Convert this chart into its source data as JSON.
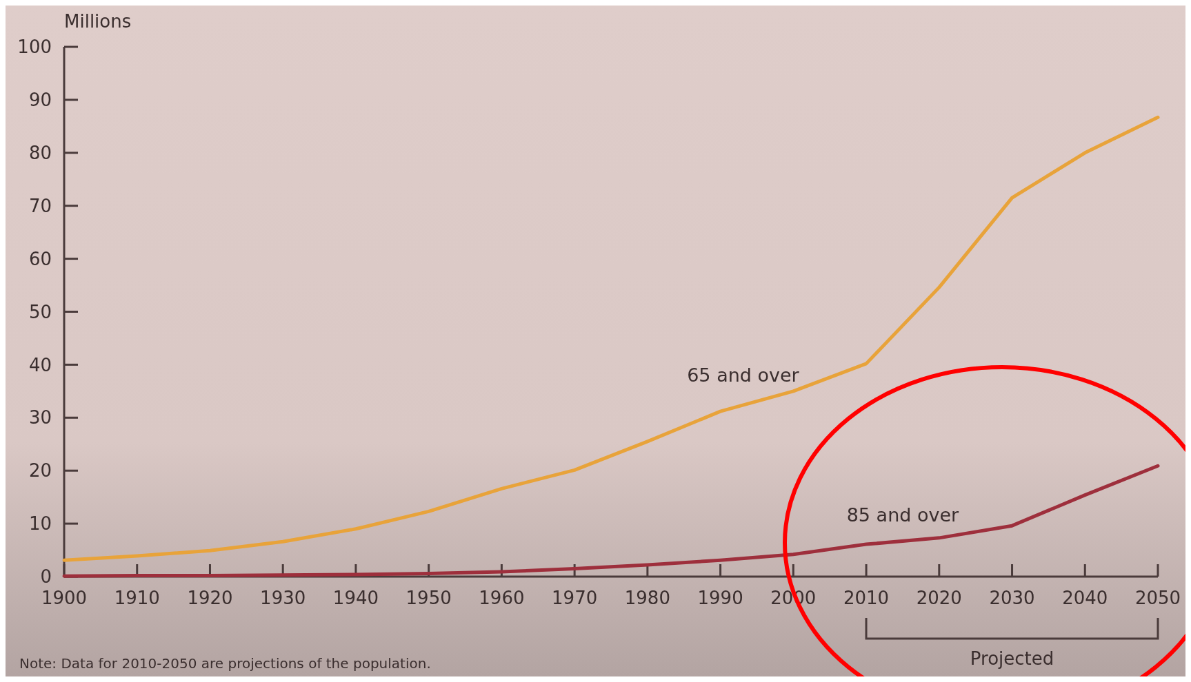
{
  "chart_data": {
    "type": "line",
    "ylabel": "Millions",
    "x": [
      1900,
      1910,
      1920,
      1930,
      1940,
      1950,
      1960,
      1970,
      1980,
      1990,
      2000,
      2010,
      2020,
      2030,
      2040,
      2050
    ],
    "series": [
      {
        "name": "65 and over",
        "color": "#e8a33a",
        "values": [
          3.1,
          3.9,
          4.9,
          6.6,
          9.0,
          12.3,
          16.6,
          20.1,
          25.5,
          31.2,
          35.0,
          40.2,
          54.6,
          71.5,
          80.0,
          86.7
        ]
      },
      {
        "name": "85 and over",
        "color": "#9e2f3c",
        "values": [
          0.1,
          0.2,
          0.2,
          0.3,
          0.4,
          0.6,
          0.9,
          1.5,
          2.2,
          3.1,
          4.2,
          6.1,
          7.3,
          9.6,
          15.4,
          20.9
        ]
      }
    ],
    "xlim": [
      1900,
      2050
    ],
    "xticks": [
      1900,
      1910,
      1920,
      1930,
      1940,
      1950,
      1960,
      1970,
      1980,
      1990,
      2000,
      2010,
      2020,
      2030,
      2040,
      2050
    ],
    "ylim": [
      0,
      100
    ],
    "yticks": [
      0,
      10,
      20,
      30,
      40,
      50,
      60,
      70,
      80,
      90,
      100
    ],
    "annotations": [
      "Note: Data for 2010-2050 are projections of the population.",
      "Projected"
    ],
    "grid": false,
    "marker": "none",
    "line_style": "solid"
  }
}
